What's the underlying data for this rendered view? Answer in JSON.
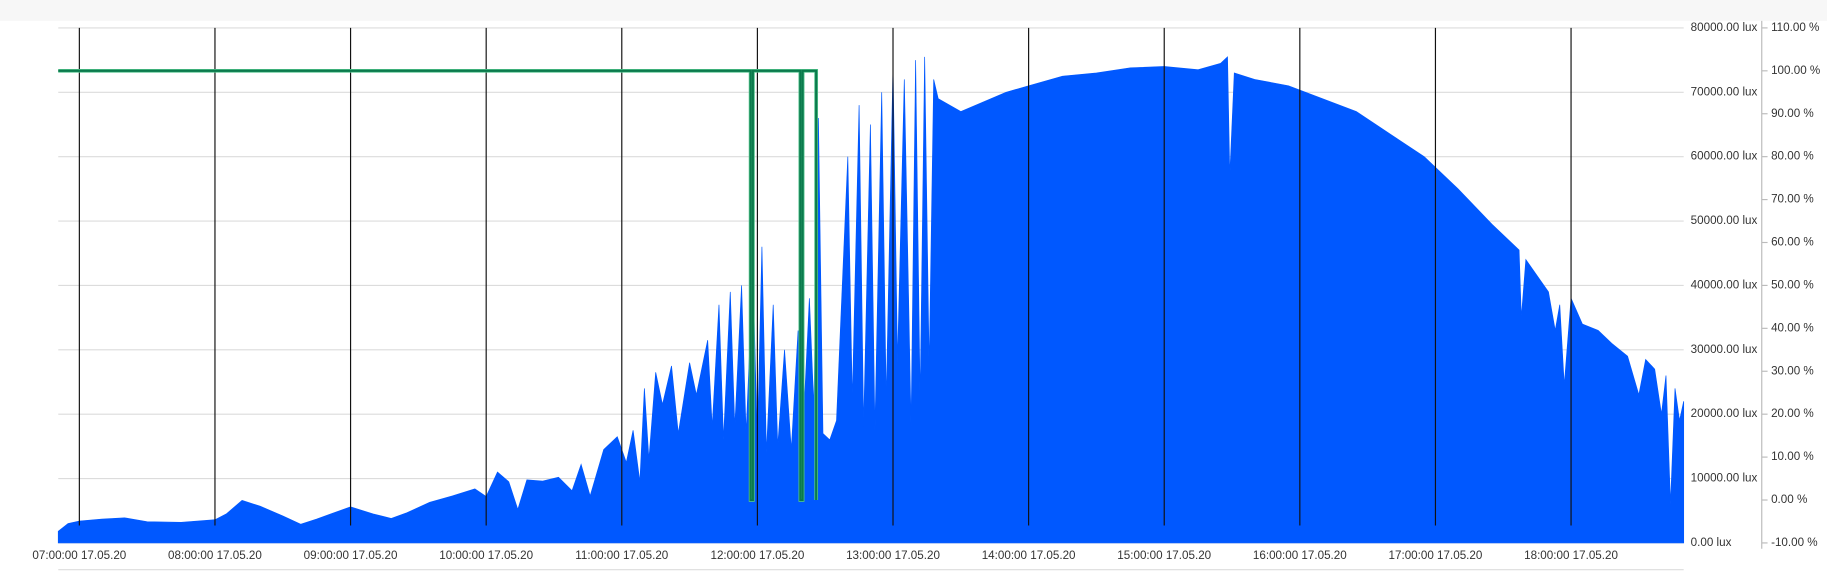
{
  "chart_data": {
    "type": "area",
    "xlim": [
      "2020-05-17T06:50:40",
      "2020-05-17T18:49:50"
    ],
    "xticks": [
      {
        "value": "2020-05-17T07:00",
        "label": "07:00:00 17.05.20"
      },
      {
        "value": "2020-05-17T08:00",
        "label": "08:00:00 17.05.20"
      },
      {
        "value": "2020-05-17T09:00",
        "label": "09:00:00 17.05.20"
      },
      {
        "value": "2020-05-17T10:00",
        "label": "10:00:00 17.05.20"
      },
      {
        "value": "2020-05-17T11:00",
        "label": "11:00:00 17.05.20"
      },
      {
        "value": "2020-05-17T12:00",
        "label": "12:00:00 17.05.20"
      },
      {
        "value": "2020-05-17T13:00",
        "label": "13:00:00 17.05.20"
      },
      {
        "value": "2020-05-17T14:00",
        "label": "14:00:00 17.05.20"
      },
      {
        "value": "2020-05-17T15:00",
        "label": "15:00:00 17.05.20"
      },
      {
        "value": "2020-05-17T16:00",
        "label": "16:00:00 17.05.20"
      },
      {
        "value": "2020-05-17T17:00",
        "label": "17:00:00 17.05.20"
      },
      {
        "value": "2020-05-17T18:00",
        "label": "18:00:00 17.05.20"
      }
    ],
    "ylim": [
      0,
      80000
    ],
    "yticks": [
      {
        "value": 0,
        "label": "0.00 lux"
      },
      {
        "value": 10000,
        "label": "10000.00 lux"
      },
      {
        "value": 20000,
        "label": "20000.00 lux"
      },
      {
        "value": 30000,
        "label": "30000.00 lux"
      },
      {
        "value": 40000,
        "label": "40000.00 lux"
      },
      {
        "value": 50000,
        "label": "50000.00 lux"
      },
      {
        "value": 60000,
        "label": "60000.00 lux"
      },
      {
        "value": 70000,
        "label": "70000.00 lux"
      },
      {
        "value": 80000,
        "label": "80000.00 lux"
      }
    ],
    "y2lim": [
      -10,
      110
    ],
    "y2ticks": [
      {
        "value": -10,
        "label": "-10.00 %"
      },
      {
        "value": 0,
        "label": "0.00 %"
      },
      {
        "value": 10,
        "label": "10.00 %"
      },
      {
        "value": 20,
        "label": "20.00 %"
      },
      {
        "value": 30,
        "label": "30.00 %"
      },
      {
        "value": 40,
        "label": "40.00 %"
      },
      {
        "value": 50,
        "label": "50.00 %"
      },
      {
        "value": 60,
        "label": "60.00 %"
      },
      {
        "value": 70,
        "label": "70.00 %"
      },
      {
        "value": 80,
        "label": "80.00 %"
      },
      {
        "value": 90,
        "label": "90.00 %"
      },
      {
        "value": 100,
        "label": "100.00 %"
      },
      {
        "value": 110,
        "label": "110.00 %"
      }
    ],
    "grid": true,
    "series": [
      {
        "type": "area",
        "color": "#0058ff",
        "x": [
          "2020-05-17T06:50:40",
          "2020-05-17T06:55",
          "2020-05-17T07:00",
          "2020-05-17T07:10",
          "2020-05-17T07:20",
          "2020-05-17T07:30",
          "2020-05-17T07:45",
          "2020-05-17T08:00",
          "2020-05-17T08:05",
          "2020-05-17T08:12",
          "2020-05-17T08:20",
          "2020-05-17T08:30",
          "2020-05-17T08:38",
          "2020-05-17T08:45",
          "2020-05-17T08:52",
          "2020-05-17T09:00",
          "2020-05-17T09:10",
          "2020-05-17T09:18",
          "2020-05-17T09:25",
          "2020-05-17T09:35",
          "2020-05-17T09:45",
          "2020-05-17T09:55",
          "2020-05-17T10:00",
          "2020-05-17T10:05",
          "2020-05-17T10:10",
          "2020-05-17T10:14",
          "2020-05-17T10:18",
          "2020-05-17T10:25",
          "2020-05-17T10:32",
          "2020-05-17T10:38",
          "2020-05-17T10:42",
          "2020-05-17T10:46",
          "2020-05-17T10:52",
          "2020-05-17T10:58",
          "2020-05-17T11:02",
          "2020-05-17T11:05",
          "2020-05-17T11:08",
          "2020-05-17T11:10",
          "2020-05-17T11:12",
          "2020-05-17T11:15",
          "2020-05-17T11:18",
          "2020-05-17T11:22",
          "2020-05-17T11:25",
          "2020-05-17T11:30",
          "2020-05-17T11:33",
          "2020-05-17T11:38",
          "2020-05-17T11:40",
          "2020-05-17T11:43",
          "2020-05-17T11:45",
          "2020-05-17T11:48",
          "2020-05-17T11:50",
          "2020-05-17T11:53",
          "2020-05-17T11:55",
          "2020-05-17T11:58",
          "2020-05-17T12:00",
          "2020-05-17T12:02",
          "2020-05-17T12:04",
          "2020-05-17T12:07",
          "2020-05-17T12:09",
          "2020-05-17T12:12",
          "2020-05-17T12:15",
          "2020-05-17T12:18",
          "2020-05-17T12:20",
          "2020-05-17T12:23",
          "2020-05-17T12:25",
          "2020-05-17T12:27",
          "2020-05-17T12:29",
          "2020-05-17T12:32",
          "2020-05-17T12:35",
          "2020-05-17T12:40",
          "2020-05-17T12:42",
          "2020-05-17T12:45",
          "2020-05-17T12:47",
          "2020-05-17T12:50",
          "2020-05-17T12:52",
          "2020-05-17T12:55",
          "2020-05-17T12:57",
          "2020-05-17T13:00",
          "2020-05-17T13:02",
          "2020-05-17T13:05",
          "2020-05-17T13:08",
          "2020-05-17T13:10",
          "2020-05-17T13:12",
          "2020-05-17T13:14",
          "2020-05-17T13:16",
          "2020-05-17T13:18",
          "2020-05-17T13:20",
          "2020-05-17T13:30",
          "2020-05-17T13:40",
          "2020-05-17T13:50",
          "2020-05-17T14:00",
          "2020-05-17T14:15",
          "2020-05-17T14:30",
          "2020-05-17T14:45",
          "2020-05-17T15:00",
          "2020-05-17T15:15",
          "2020-05-17T15:25",
          "2020-05-17T15:28",
          "2020-05-17T15:29",
          "2020-05-17T15:31",
          "2020-05-17T15:40",
          "2020-05-17T15:55",
          "2020-05-17T16:10",
          "2020-05-17T16:25",
          "2020-05-17T16:40",
          "2020-05-17T16:55",
          "2020-05-17T17:10",
          "2020-05-17T17:25",
          "2020-05-17T17:37",
          "2020-05-17T17:38",
          "2020-05-17T17:40",
          "2020-05-17T17:50",
          "2020-05-17T17:53",
          "2020-05-17T17:55",
          "2020-05-17T17:57",
          "2020-05-17T18:00",
          "2020-05-17T18:05",
          "2020-05-17T18:12",
          "2020-05-17T18:18",
          "2020-05-17T18:25",
          "2020-05-17T18:30",
          "2020-05-17T18:33",
          "2020-05-17T18:37",
          "2020-05-17T18:40",
          "2020-05-17T18:42",
          "2020-05-17T18:44",
          "2020-05-17T18:46",
          "2020-05-17T18:48",
          "2020-05-17T18:49:50"
        ],
        "values": [
          1800,
          3000,
          3400,
          3700,
          3900,
          3300,
          3200,
          3600,
          4500,
          6600,
          5700,
          4200,
          2900,
          3700,
          4600,
          5600,
          4500,
          3800,
          4700,
          6300,
          7300,
          8400,
          7200,
          11000,
          9500,
          5200,
          9800,
          9600,
          10200,
          8100,
          12200,
          7300,
          14500,
          16500,
          12500,
          17500,
          9500,
          24000,
          13000,
          26500,
          21500,
          27500,
          17000,
          28000,
          23000,
          31500,
          18000,
          37000,
          16000,
          39000,
          18000,
          40000,
          17000,
          42000,
          15500,
          46000,
          14000,
          37000,
          15000,
          30000,
          14500,
          33000,
          16000,
          38000,
          21000,
          66000,
          17000,
          16000,
          19000,
          60000,
          22000,
          68000,
          18000,
          65000,
          17500,
          70000,
          22000,
          74000,
          28000,
          72000,
          18000,
          75000,
          22000,
          75500,
          27000,
          72000,
          69000,
          67000,
          68500,
          70000,
          71000,
          72500,
          73000,
          73800,
          74000,
          73500,
          74500,
          75500,
          57000,
          73000,
          72000,
          71000,
          69000,
          67000,
          63500,
          60000,
          55000,
          49500,
          45500,
          35000,
          44000,
          39000,
          33000,
          37000,
          24500,
          38000,
          34000,
          33000,
          31000,
          29000,
          23000,
          28500,
          27000,
          20000,
          26000,
          6000,
          24000,
          19000,
          22000
        ]
      },
      {
        "type": "line",
        "axis": "y2",
        "color": "#0b7a4c",
        "x": [
          "2020-05-17T06:50:40",
          "2020-05-17T11:57",
          "2020-05-17T11:57",
          "2020-05-17T11:58",
          "2020-05-17T11:58",
          "2020-05-17T12:19",
          "2020-05-17T12:19",
          "2020-05-17T12:20",
          "2020-05-17T12:20",
          "2020-05-17T12:26",
          "2020-05-17T12:26"
        ],
        "values": [
          100,
          100,
          0,
          0,
          100,
          100,
          0,
          0,
          100,
          100,
          0
        ]
      }
    ]
  }
}
